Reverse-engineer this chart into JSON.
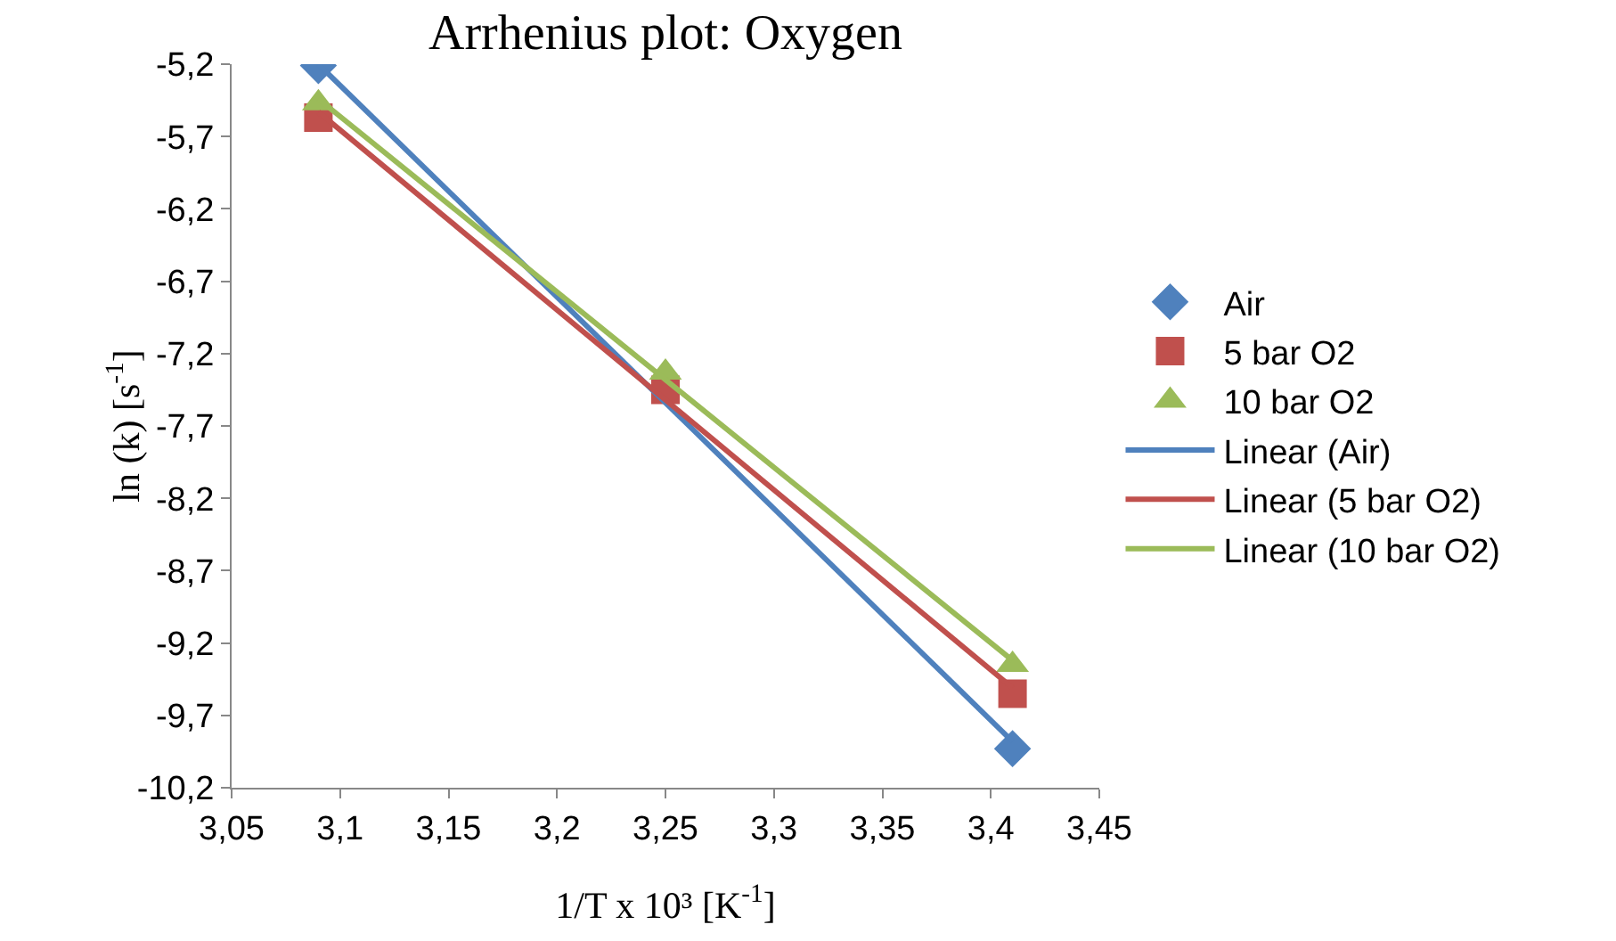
{
  "chart_data": {
    "type": "scatter",
    "title": "Arrhenius plot: Oxygen",
    "xlabel": "1/T x 10³ [K$^{-1}$]",
    "ylabel": "ln (k) [s$^{-1}$]",
    "xlim": [
      3.05,
      3.45
    ],
    "xticks": [
      {
        "value": 3.05,
        "label": "3,05"
      },
      {
        "value": 3.1,
        "label": "3,1"
      },
      {
        "value": 3.15,
        "label": "3,15"
      },
      {
        "value": 3.2,
        "label": "3,2"
      },
      {
        "value": 3.25,
        "label": "3,25"
      },
      {
        "value": 3.3,
        "label": "3,3"
      },
      {
        "value": 3.35,
        "label": "3,35"
      },
      {
        "value": 3.4,
        "label": "3,4"
      },
      {
        "value": 3.45,
        "label": "3,45"
      }
    ],
    "ylim": [
      -10.2,
      -5.2
    ],
    "yticks": [
      {
        "value": -5.2,
        "label": "-5,2"
      },
      {
        "value": -5.7,
        "label": "-5,7"
      },
      {
        "value": -6.2,
        "label": "-6,2"
      },
      {
        "value": -6.7,
        "label": "-6,7"
      },
      {
        "value": -7.2,
        "label": "-7,2"
      },
      {
        "value": -7.7,
        "label": "-7,7"
      },
      {
        "value": -8.2,
        "label": "-8,2"
      },
      {
        "value": -8.7,
        "label": "-8,7"
      },
      {
        "value": -9.2,
        "label": "-9,2"
      },
      {
        "value": -9.7,
        "label": "-9,7"
      },
      {
        "value": -10.2,
        "label": "-10,2"
      }
    ],
    "grid": false,
    "legend": "right",
    "series": [
      {
        "name": "Air",
        "marker": "diamond",
        "color": "#4f81bd",
        "x": [
          3.09,
          3.25,
          3.41
        ],
        "values": [
          -5.21,
          null,
          -9.93
        ]
      },
      {
        "name": "5 bar O2",
        "marker": "square",
        "color": "#c0504d",
        "x": [
          3.09,
          3.25,
          3.41
        ],
        "values": [
          -5.57,
          -7.45,
          -9.55
        ]
      },
      {
        "name": "10 bar O2",
        "marker": "triangle",
        "color": "#9bbb59",
        "x": [
          3.09,
          3.25,
          3.41
        ],
        "values": [
          -5.47,
          -7.33,
          -9.35
        ]
      },
      {
        "name": "Linear (Air)",
        "type": "line",
        "marker": "none",
        "color": "#4f81bd",
        "x": [
          3.09,
          3.41
        ],
        "values": [
          -5.2,
          -9.88
        ]
      },
      {
        "name": "Linear (5 bar O2)",
        "type": "line",
        "marker": "none",
        "color": "#c0504d",
        "x": [
          3.09,
          3.41
        ],
        "values": [
          -5.53,
          -9.51
        ]
      },
      {
        "name": "Linear (10 bar O2)",
        "type": "line",
        "marker": "none",
        "color": "#9bbb59",
        "x": [
          3.09,
          3.41
        ],
        "values": [
          -5.44,
          -9.32
        ]
      }
    ]
  }
}
